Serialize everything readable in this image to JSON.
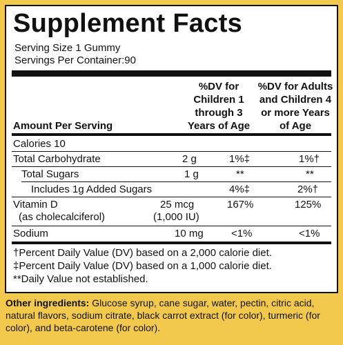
{
  "title": "Supplement Facts",
  "serving_size": "Serving Size 1 Gummy",
  "servings_per_container": "Servings Per Container:90",
  "columns": {
    "amount": "Amount Per Serving",
    "dv_children": [
      "%DV for",
      "Children 1",
      "through 3",
      "Years of Age"
    ],
    "dv_adults": [
      "%DV for Adults",
      "and Children 4",
      "or more Years",
      "of Age"
    ]
  },
  "calories": "Calories  10",
  "rows": [
    {
      "name": "Total Carbohydrate",
      "amount": "2 g",
      "dv_children": "1%‡",
      "dv_adults": "1%†"
    },
    {
      "name": "Total Sugars",
      "amount": "1 g",
      "dv_children": "**",
      "dv_adults": "**"
    },
    {
      "name": "Includes 1g Added Sugars",
      "amount": "",
      "dv_children": "4%‡",
      "dv_adults": "2%†"
    },
    {
      "name": "Vitamin D",
      "sub": "(as cholecalciferol)",
      "amount": "25 mcg",
      "amount_sub": "(1,000 IU)",
      "dv_children": "167%",
      "dv_adults": "125%"
    },
    {
      "name": "Sodium",
      "amount": "10 mg",
      "dv_children": "<1%",
      "dv_adults": "<1%"
    }
  ],
  "footnotes": [
    "†Percent Daily Value (DV) based on a 2,000 calorie diet.",
    "‡Percent Daily Value (DV) based on a 1,000 calorie diet.",
    "**Daily Value not established."
  ],
  "other_ingredients": {
    "label": "Other ingredients:",
    "text": " Glucose syrup, cane sugar, water, pectin, citric acid, natural flavors, sodium citrate, black carrot extract (for color), turmeric (for color), and beta-carotene (for color)."
  }
}
